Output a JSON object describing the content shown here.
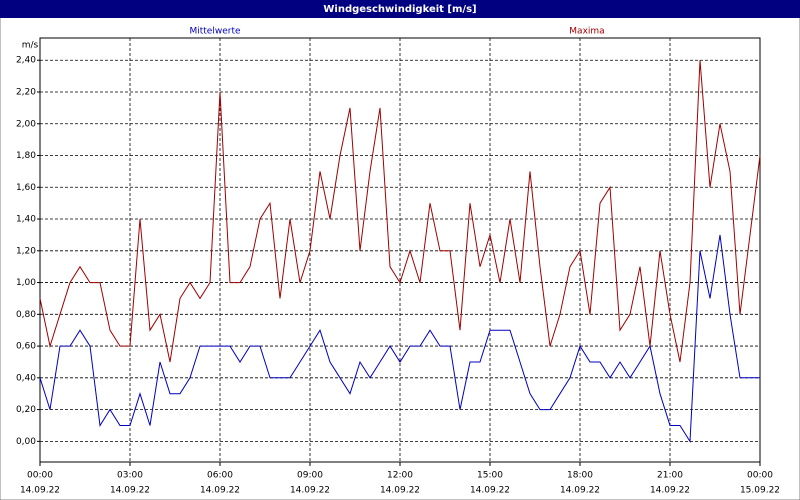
{
  "chart_data": {
    "type": "line",
    "title": "Windgeschwindigkeit [m/s]",
    "y_label": "m/s",
    "xlim": [
      0,
      1440
    ],
    "xticks": [
      {
        "value": 0,
        "label": "00:00",
        "date": "14.09.22"
      },
      {
        "value": 180,
        "label": "03:00",
        "date": "14.09.22"
      },
      {
        "value": 360,
        "label": "06:00",
        "date": "14.09.22"
      },
      {
        "value": 540,
        "label": "09:00",
        "date": "14.09.22"
      },
      {
        "value": 720,
        "label": "12:00",
        "date": "14.09.22"
      },
      {
        "value": 900,
        "label": "15:00",
        "date": "14.09.22"
      },
      {
        "value": 1080,
        "label": "18:00",
        "date": "14.09.22"
      },
      {
        "value": 1260,
        "label": "21:00",
        "date": "14.09.22"
      },
      {
        "value": 1440,
        "label": "00:00",
        "date": "15.09.22"
      }
    ],
    "ylim": [
      -0.13,
      2.54
    ],
    "yticks": [
      {
        "value": 0,
        "label": "0,00"
      },
      {
        "value": 0.2,
        "label": "0,20"
      },
      {
        "value": 0.4,
        "label": "0,40"
      },
      {
        "value": 0.6,
        "label": "0,60"
      },
      {
        "value": 0.8,
        "label": "0,80"
      },
      {
        "value": 1.0,
        "label": "1,00"
      },
      {
        "value": 1.2,
        "label": "1,20"
      },
      {
        "value": 1.4,
        "label": "1,40"
      },
      {
        "value": 1.6,
        "label": "1,60"
      },
      {
        "value": 1.8,
        "label": "1,80"
      },
      {
        "value": 2.0,
        "label": "2,00"
      },
      {
        "value": 2.2,
        "label": "2,20"
      },
      {
        "value": 2.4,
        "label": "2,40"
      }
    ],
    "grid": true,
    "x": [
      0,
      20,
      40,
      60,
      80,
      100,
      120,
      140,
      160,
      180,
      200,
      220,
      240,
      260,
      280,
      300,
      320,
      340,
      360,
      380,
      400,
      420,
      440,
      460,
      480,
      500,
      520,
      540,
      560,
      580,
      600,
      620,
      640,
      660,
      680,
      700,
      720,
      740,
      760,
      780,
      800,
      820,
      840,
      860,
      880,
      900,
      920,
      940,
      960,
      980,
      1000,
      1020,
      1040,
      1060,
      1080,
      1100,
      1120,
      1140,
      1160,
      1180,
      1200,
      1220,
      1240,
      1260,
      1280,
      1300,
      1320,
      1340,
      1360,
      1380,
      1400,
      1420,
      1440
    ],
    "series": [
      {
        "name": "Mittelwerte",
        "color": "#0000c0",
        "values": [
          0.4,
          0.2,
          0.6,
          0.6,
          0.7,
          0.6,
          0.1,
          0.2,
          0.1,
          0.1,
          0.3,
          0.1,
          0.5,
          0.3,
          0.3,
          0.4,
          0.6,
          0.6,
          0.6,
          0.6,
          0.5,
          0.6,
          0.6,
          0.4,
          0.4,
          0.4,
          0.5,
          0.6,
          0.7,
          0.5,
          0.4,
          0.3,
          0.5,
          0.4,
          0.5,
          0.6,
          0.5,
          0.6,
          0.6,
          0.7,
          0.6,
          0.6,
          0.2,
          0.5,
          0.5,
          0.7,
          0.7,
          0.7,
          0.5,
          0.3,
          0.2,
          0.2,
          0.3,
          0.4,
          0.6,
          0.5,
          0.5,
          0.4,
          0.5,
          0.4,
          0.5,
          0.6,
          0.3,
          0.1,
          0.1,
          0.0,
          1.2,
          0.9,
          1.3,
          0.8,
          0.4,
          0.4,
          0.4
        ]
      },
      {
        "name": "Maxima",
        "color": "#a00000",
        "values": [
          0.9,
          0.6,
          0.8,
          1.0,
          1.1,
          1.0,
          1.0,
          0.7,
          0.6,
          0.6,
          1.4,
          0.7,
          0.8,
          0.5,
          0.9,
          1.0,
          0.9,
          1.0,
          2.2,
          1.0,
          1.0,
          1.1,
          1.4,
          1.5,
          0.9,
          1.4,
          1.0,
          1.2,
          1.7,
          1.4,
          1.8,
          2.1,
          1.2,
          1.7,
          2.1,
          1.1,
          1.0,
          1.2,
          1.0,
          1.5,
          1.2,
          1.2,
          0.7,
          1.5,
          1.1,
          1.3,
          1.0,
          1.4,
          1.0,
          1.7,
          1.1,
          0.6,
          0.8,
          1.1,
          1.2,
          0.8,
          1.5,
          1.6,
          0.7,
          0.8,
          1.1,
          0.6,
          1.2,
          0.8,
          0.5,
          1.0,
          2.4,
          1.6,
          2.0,
          1.7,
          0.8,
          1.3,
          1.8
        ]
      }
    ]
  }
}
